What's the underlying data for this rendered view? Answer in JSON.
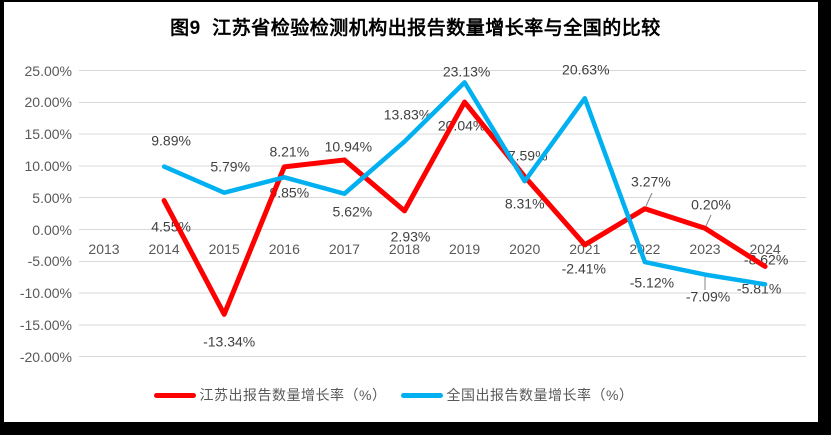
{
  "chart_data": {
    "type": "line",
    "title": "图9  江苏省检验检测机构出报告数量增长率与全国的比较",
    "xlabel": "",
    "ylabel": "",
    "categories": [
      "2013",
      "2014",
      "2015",
      "2016",
      "2017",
      "2018",
      "2019",
      "2020",
      "2021",
      "2022",
      "2023",
      "2024"
    ],
    "series": [
      {
        "name": "江苏出报告数量增长率（%）",
        "color": "#FE0000",
        "values": [
          null,
          4.55,
          -13.34,
          9.85,
          10.94,
          2.93,
          20.04,
          8.31,
          -2.41,
          3.27,
          0.2,
          -5.81
        ]
      },
      {
        "name": "全国出报告数量增长率（%）",
        "color": "#00B0F0",
        "values": [
          null,
          9.89,
          5.79,
          8.21,
          5.62,
          13.83,
          23.13,
          7.59,
          20.63,
          -5.12,
          -7.09,
          -8.62
        ]
      }
    ],
    "yticks": [
      25,
      20,
      15,
      10,
      5,
      0,
      -5,
      -10,
      -15,
      -20
    ],
    "ylim": [
      -20,
      25
    ],
    "value_label_format": "0.00%",
    "grid": true,
    "gridline_color": "#D9D9D9",
    "axis_text_color": "#595959",
    "data_label_color": "#404040",
    "legend_position": "bottom"
  }
}
